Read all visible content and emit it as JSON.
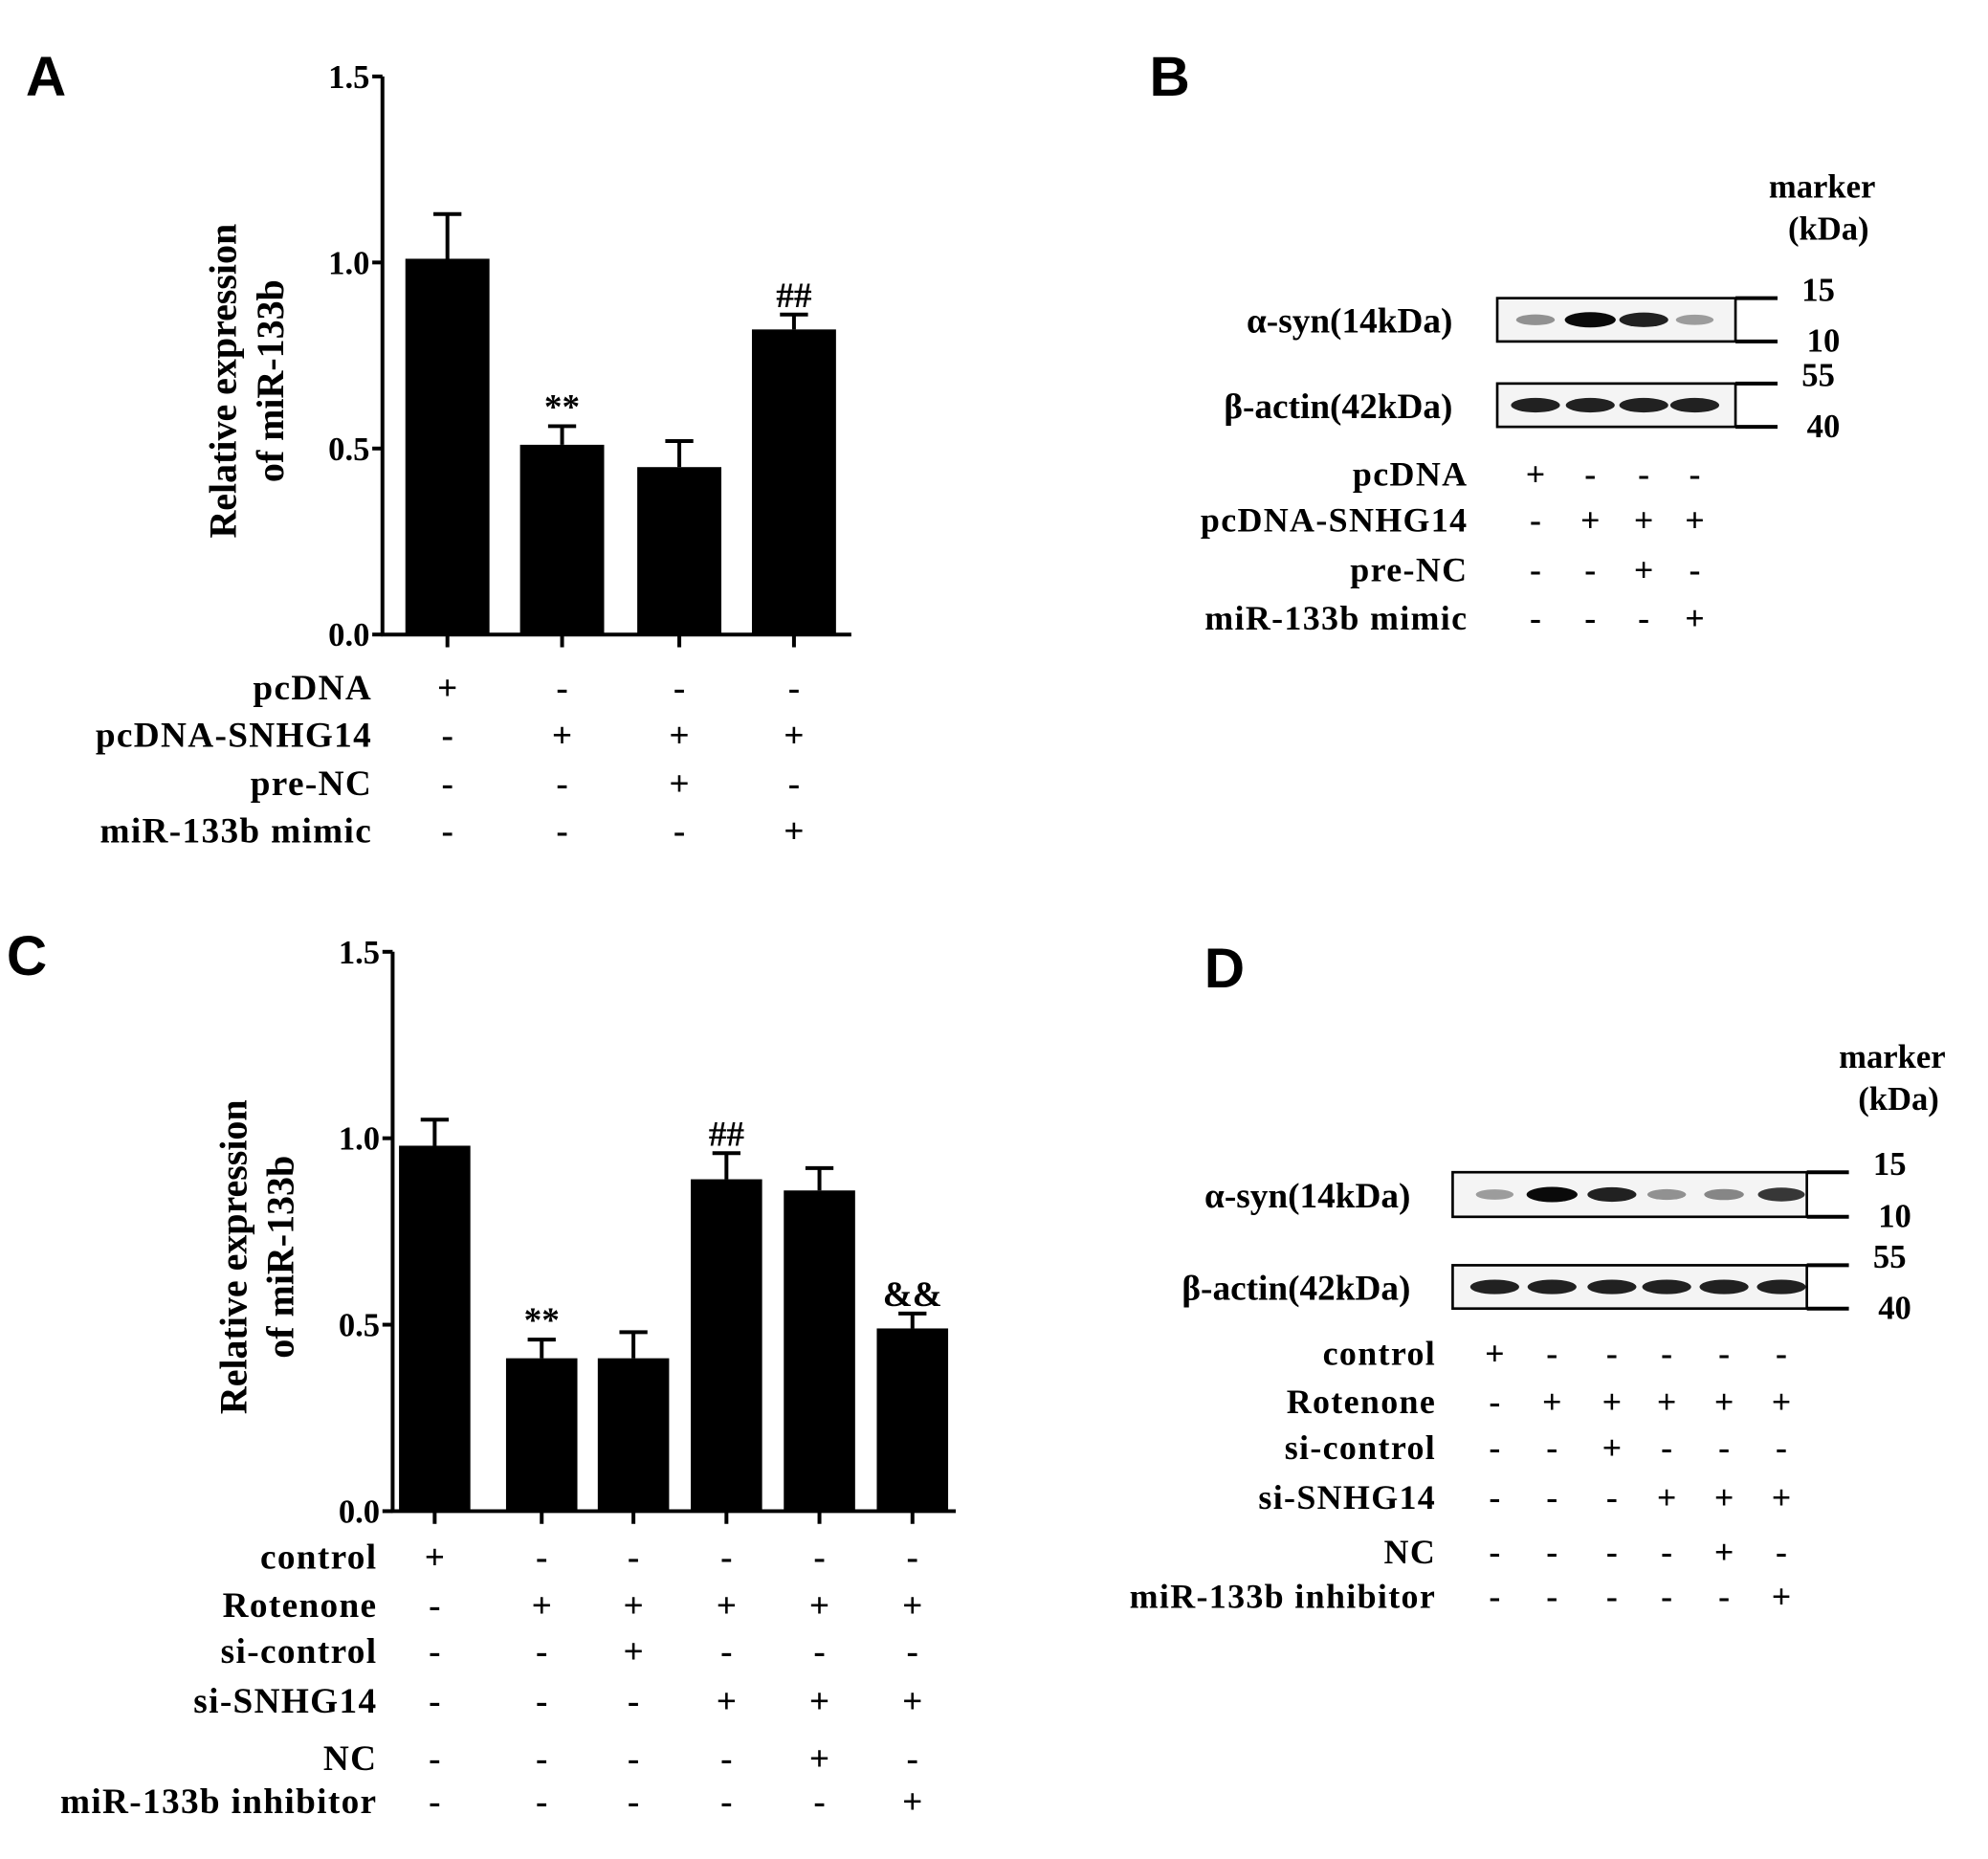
{
  "chart_data": [
    {
      "type": "bar",
      "panel": "A",
      "ylabel": [
        "Relative expression",
        "of miR-133b"
      ],
      "ylim": [
        0,
        1.5
      ],
      "yticks": [
        "0.0",
        "0.5",
        "1.0",
        "1.5"
      ],
      "values": [
        1.01,
        0.51,
        0.45,
        0.82
      ],
      "errors": [
        0.12,
        0.05,
        0.07,
        0.04
      ],
      "annotations": [
        "",
        "**",
        "",
        "##"
      ],
      "conditions": [
        {
          "label": "pcDNA",
          "signs": [
            "+",
            "-",
            "-",
            "-"
          ]
        },
        {
          "label": "pcDNA-SNHG14",
          "signs": [
            "-",
            "+",
            "+",
            "+"
          ]
        },
        {
          "label": "pre-NC",
          "signs": [
            "-",
            "-",
            "+",
            "-"
          ]
        },
        {
          "label": "miR-133b mimic",
          "signs": [
            "-",
            "-",
            "-",
            "+"
          ]
        }
      ]
    },
    {
      "type": "bar",
      "panel": "C",
      "ylabel": [
        "Relative expression",
        "of miR-133b"
      ],
      "ylim": [
        0,
        1.5
      ],
      "yticks": [
        "0.0",
        "0.5",
        "1.0",
        "1.5"
      ],
      "values": [
        0.98,
        0.41,
        0.41,
        0.89,
        0.86,
        0.49
      ],
      "errors": [
        0.07,
        0.05,
        0.07,
        0.07,
        0.06,
        0.04
      ],
      "annotations": [
        "",
        "**",
        "",
        "##",
        "",
        "&&"
      ],
      "conditions": [
        {
          "label": "control",
          "signs": [
            "+",
            "-",
            "-",
            "-",
            "-",
            "-"
          ]
        },
        {
          "label": "Rotenone",
          "signs": [
            "-",
            "+",
            "+",
            "+",
            "+",
            "+"
          ]
        },
        {
          "label": "si-control",
          "signs": [
            "-",
            "-",
            "+",
            "-",
            "-",
            "-"
          ]
        },
        {
          "label": "si-SNHG14",
          "signs": [
            "-",
            "-",
            "-",
            "+",
            "+",
            "+"
          ]
        },
        {
          "label": "NC",
          "signs": [
            "-",
            "-",
            "-",
            "-",
            "+",
            "-"
          ]
        },
        {
          "label": "miR-133b inhibitor",
          "signs": [
            "-",
            "-",
            "-",
            "-",
            "-",
            "+"
          ]
        }
      ]
    }
  ],
  "blots": [
    {
      "panel": "B",
      "marker_title": [
        "marker",
        "(kDa)"
      ],
      "rows": [
        {
          "label": "α-syn(14kDa)",
          "markers": [
            "15",
            "10"
          ],
          "intensity": [
            0.4,
            1,
            0.9,
            0.35
          ]
        },
        {
          "label": "β-actin(42kDa)",
          "markers": [
            "55",
            "40"
          ],
          "intensity": [
            0.9,
            0.9,
            0.9,
            0.9
          ]
        }
      ],
      "conditions": [
        {
          "label": "pcDNA",
          "signs": [
            "+",
            "-",
            "-",
            "-"
          ]
        },
        {
          "label": "pcDNA-SNHG14",
          "signs": [
            "-",
            "+",
            "+",
            "+"
          ]
        },
        {
          "label": "pre-NC",
          "signs": [
            "-",
            "-",
            "+",
            "-"
          ]
        },
        {
          "label": "miR-133b mimic",
          "signs": [
            "-",
            "-",
            "-",
            "+"
          ]
        }
      ]
    },
    {
      "panel": "D",
      "marker_title": [
        "marker",
        "(kDa)"
      ],
      "rows": [
        {
          "label": "α-syn(14kDa)",
          "markers": [
            "15",
            "10"
          ],
          "intensity": [
            0.35,
            1,
            0.9,
            0.4,
            0.45,
            0.8
          ]
        },
        {
          "label": "β-actin(42kDa)",
          "markers": [
            "55",
            "40"
          ],
          "intensity": [
            0.9,
            0.9,
            0.9,
            0.9,
            0.9,
            0.9
          ]
        }
      ],
      "conditions": [
        {
          "label": "control",
          "signs": [
            "+",
            "-",
            "-",
            "-",
            "-",
            "-"
          ]
        },
        {
          "label": "Rotenone",
          "signs": [
            "-",
            "+",
            "+",
            "+",
            "+",
            "+"
          ]
        },
        {
          "label": "si-control",
          "signs": [
            "-",
            "-",
            "+",
            "-",
            "-",
            "-"
          ]
        },
        {
          "label": "si-SNHG14",
          "signs": [
            "-",
            "-",
            "-",
            "+",
            "+",
            "+"
          ]
        },
        {
          "label": "NC",
          "signs": [
            "-",
            "-",
            "-",
            "-",
            "+",
            "-"
          ]
        },
        {
          "label": "miR-133b inhibitor",
          "signs": [
            "-",
            "-",
            "-",
            "-",
            "-",
            "+"
          ]
        }
      ]
    }
  ]
}
